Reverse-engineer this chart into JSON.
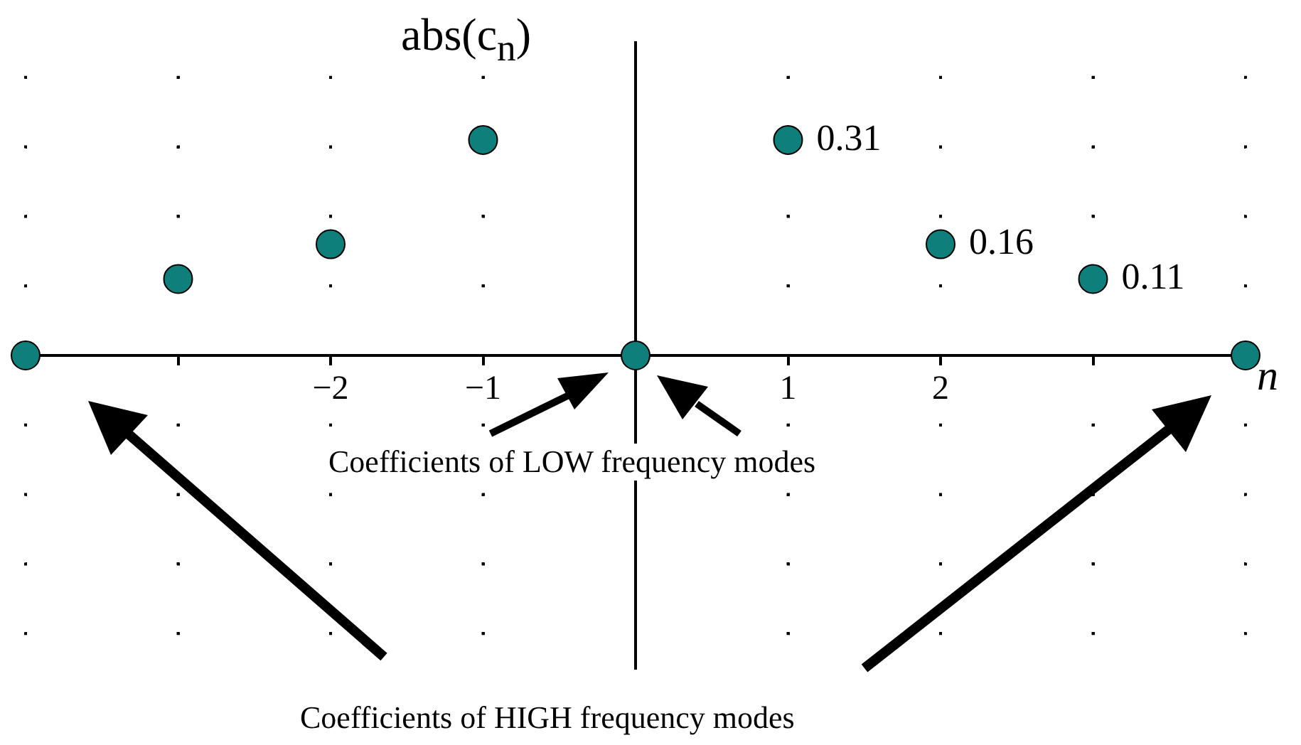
{
  "chart_data": {
    "type": "scatter",
    "ylabel": "abs(c$_{n}$)",
    "xlabel": "n",
    "x": [
      -4,
      -3,
      -2,
      -1,
      0,
      1,
      2,
      3,
      4
    ],
    "values": [
      0,
      0.11,
      0.16,
      0.31,
      0,
      0.31,
      0.16,
      0.11,
      0
    ],
    "value_labels": [
      null,
      null,
      null,
      null,
      null,
      "0.31",
      "0.16",
      "0.11",
      null
    ],
    "color": "#0f7f7b",
    "marker": "circle",
    "xlim": [
      -4,
      4
    ],
    "xticks": [
      {
        "value": -4,
        "label": null
      },
      {
        "value": -3,
        "label": null
      },
      {
        "value": -2,
        "label": "−2"
      },
      {
        "value": -1,
        "label": "−1"
      },
      {
        "value": 0,
        "label": null
      },
      {
        "value": 1,
        "label": "1"
      },
      {
        "value": 2,
        "label": "2"
      },
      {
        "value": 3,
        "label": null
      },
      {
        "value": 4,
        "label": null
      }
    ],
    "ylim": [
      -0.45,
      0.45
    ],
    "yticks": [
      {
        "value": -0.4,
        "label": null
      },
      {
        "value": -0.3,
        "label": null
      },
      {
        "value": -0.2,
        "label": null
      },
      {
        "value": -0.1,
        "label": null
      },
      {
        "value": 0.1,
        "label": null
      },
      {
        "value": 0.2,
        "label": null
      },
      {
        "value": 0.3,
        "label": null
      },
      {
        "value": 0.4,
        "label": null
      }
    ],
    "tick_labels": "x",
    "grid": true,
    "legend": false,
    "annotations": [
      "Coefficients of LOW frequency modes",
      "Coefficients of HIGH frequency modes"
    ]
  }
}
